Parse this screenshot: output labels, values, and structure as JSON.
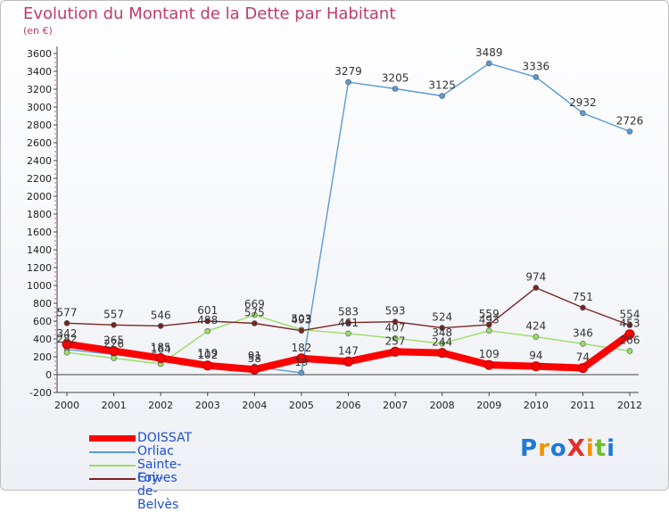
{
  "chart_data": {
    "type": "line",
    "title": "Evolution du Montant de la Dette par Habitant",
    "subtitle": "(en €)",
    "x": [
      "2000",
      "2001",
      "2002",
      "2003",
      "2004",
      "2005",
      "2006",
      "2007",
      "2008",
      "2009",
      "2010",
      "2011",
      "2012"
    ],
    "y_ticks": [
      -200,
      0,
      200,
      400,
      600,
      800,
      1000,
      1200,
      1400,
      1600,
      1800,
      2000,
      2200,
      2400,
      2600,
      2800,
      3000,
      3200,
      3400,
      3600
    ],
    "ylim": [
      -200,
      3600
    ],
    "grid": false,
    "legend_position": "bottom-left",
    "series": [
      {
        "name": "DOISSAT",
        "color": "#ff0000",
        "values": [
          342,
          265,
          185,
          102,
          58,
          182,
          147,
          257,
          244,
          109,
          94,
          74,
          453
        ],
        "labels": [
          "342",
          "265",
          "185",
          "102",
          "58",
          "182",
          "147",
          "257",
          "244",
          "109",
          "94",
          "74",
          "453"
        ]
      },
      {
        "name": "Orliac",
        "color": "#5b9bd5",
        "values": [
          282,
          226,
          164,
          119,
          91,
          19,
          3279,
          3205,
          3125,
          3489,
          3336,
          2932,
          2726
        ],
        "labels": [
          "282",
          "226",
          "164",
          "119",
          "91",
          "19",
          "3279",
          "3205",
          "3125",
          "3489",
          "3336",
          "2932",
          "2726"
        ]
      },
      {
        "name": "Sainte-Foy-de-Belvès",
        "color": "#99dd66",
        "values": [
          248,
          185,
          120,
          488,
          669,
          503,
          461,
          407,
          348,
          493,
          424,
          346,
          266
        ],
        "labels": [
          "",
          "",
          "",
          "488",
          "669",
          "503",
          "461",
          "407",
          "348",
          "493",
          "424",
          "346",
          "266"
        ]
      },
      {
        "name": "Grives",
        "color": "#7b2323",
        "values": [
          577,
          557,
          546,
          601,
          575,
          493,
          583,
          593,
          524,
          559,
          974,
          751,
          554
        ],
        "labels": [
          "577",
          "557",
          "546",
          "601",
          "575",
          "493",
          "583",
          "593",
          "524",
          "559",
          "974",
          "751",
          "554"
        ]
      }
    ]
  },
  "logo": {
    "text": "ProXiti",
    "letters": [
      "P",
      "r",
      "o",
      "X",
      "i",
      "t",
      "i"
    ],
    "colors": [
      "#1f7ad4",
      "#f39200",
      "#1f7ad4",
      "#e52b2b",
      "#f39200",
      "#6cbf2a",
      "#1f7ad4"
    ]
  }
}
